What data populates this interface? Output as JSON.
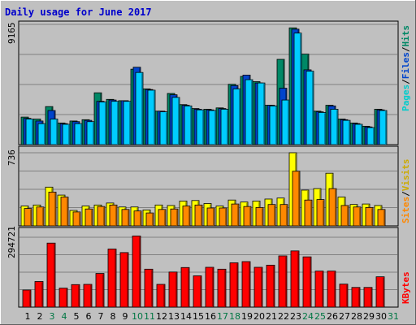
{
  "chart_data": {
    "type": "bar",
    "title": "Daily usage for June 2017",
    "days": [
      "1",
      "2",
      "3",
      "4",
      "5",
      "6",
      "7",
      "8",
      "9",
      "10",
      "11",
      "12",
      "13",
      "14",
      "15",
      "16",
      "17",
      "18",
      "19",
      "20",
      "21",
      "22",
      "23",
      "24",
      "25",
      "26",
      "27",
      "28",
      "29",
      "30",
      "31"
    ],
    "weekend_days": [
      "3",
      "4",
      "10",
      "11",
      "17",
      "18",
      "24",
      "25",
      "31"
    ],
    "panels": [
      {
        "id": "hits-files-pages",
        "max_label": "9165",
        "ymax": 9165,
        "legend": [
          "Pages",
          "/",
          "Files",
          "/",
          "Hits"
        ],
        "legend_colors": [
          "#00cccc",
          "#000000",
          "#0044cc",
          "#000000",
          "#008866"
        ],
        "series": [
          {
            "name": "Hits",
            "color": "#008866",
            "values": [
              2100,
              1950,
              2900,
              1650,
              1800,
              1900,
              3950,
              3450,
              3350,
              5750,
              4250,
              2550,
              3900,
              3050,
              2750,
              2700,
              2800,
              4600,
              5200,
              4800,
              3000,
              6500,
              8900,
              6900,
              2550,
              3000,
              1950,
              1650,
              1400,
              2700,
              0
            ]
          },
          {
            "name": "Files",
            "color": "#0044cc",
            "values": [
              2000,
              1800,
              2600,
              1600,
              1750,
              1850,
              3300,
              3400,
              3350,
              5900,
              4200,
              2550,
              3800,
              3000,
              2700,
              2650,
              2750,
              4500,
              5300,
              4700,
              3000,
              4300,
              8800,
              5700,
              2500,
              2950,
              1900,
              1600,
              1350,
              2650,
              0
            ]
          },
          {
            "name": "Pages",
            "color": "#00ccff",
            "values": [
              1950,
              1600,
              1950,
              1550,
              1600,
              1750,
              3250,
              3300,
              3300,
              5500,
              4150,
              2500,
              3600,
              2950,
              2650,
              2600,
              2700,
              4250,
              4950,
              4700,
              2950,
              3400,
              8500,
              5600,
              2450,
              2700,
              1850,
              1550,
              1300,
              2600,
              0
            ]
          }
        ]
      },
      {
        "id": "visits-sites",
        "max_label": "736",
        "ymax": 736,
        "legend": [
          "Sites",
          "/",
          "Visits"
        ],
        "legend_colors": [
          "#ff8800",
          "#000000",
          "#ccaa00"
        ],
        "series": [
          {
            "name": "Visits",
            "color": "#ffff00",
            "values": [
              200,
              210,
              390,
              310,
              155,
              200,
              210,
              230,
              190,
              190,
              160,
              210,
              205,
              250,
              255,
              225,
              200,
              260,
              240,
              250,
              270,
              280,
              736,
              360,
              375,
              530,
              290,
              215,
              220,
              205,
              0
            ]
          },
          {
            "name": "Sites",
            "color": "#ff8800",
            "values": [
              175,
              190,
              340,
              290,
              140,
              170,
              195,
              210,
              165,
              150,
              130,
              165,
              170,
              200,
              210,
              180,
              180,
              220,
              195,
              185,
              215,
              215,
              550,
              260,
              265,
              375,
              205,
              190,
              185,
              165,
              0
            ]
          }
        ]
      },
      {
        "id": "kbytes",
        "max_label": "294721",
        "ymax": 294721,
        "legend": [
          "KBytes"
        ],
        "legend_colors": [
          "#ff0000"
        ],
        "series": [
          {
            "name": "KBytes",
            "color": "#ff0000",
            "values": [
              72000,
              108000,
              270000,
              80000,
              95000,
              96000,
              142000,
              245000,
              230000,
              300000,
              160000,
              96000,
              148000,
              167000,
              132000,
              168000,
              160000,
              187000,
              192000,
              168000,
              177000,
              216000,
              237000,
              212000,
              152000,
              152000,
              97000,
              83000,
              83000,
              128000,
              0
            ]
          }
        ]
      }
    ]
  }
}
